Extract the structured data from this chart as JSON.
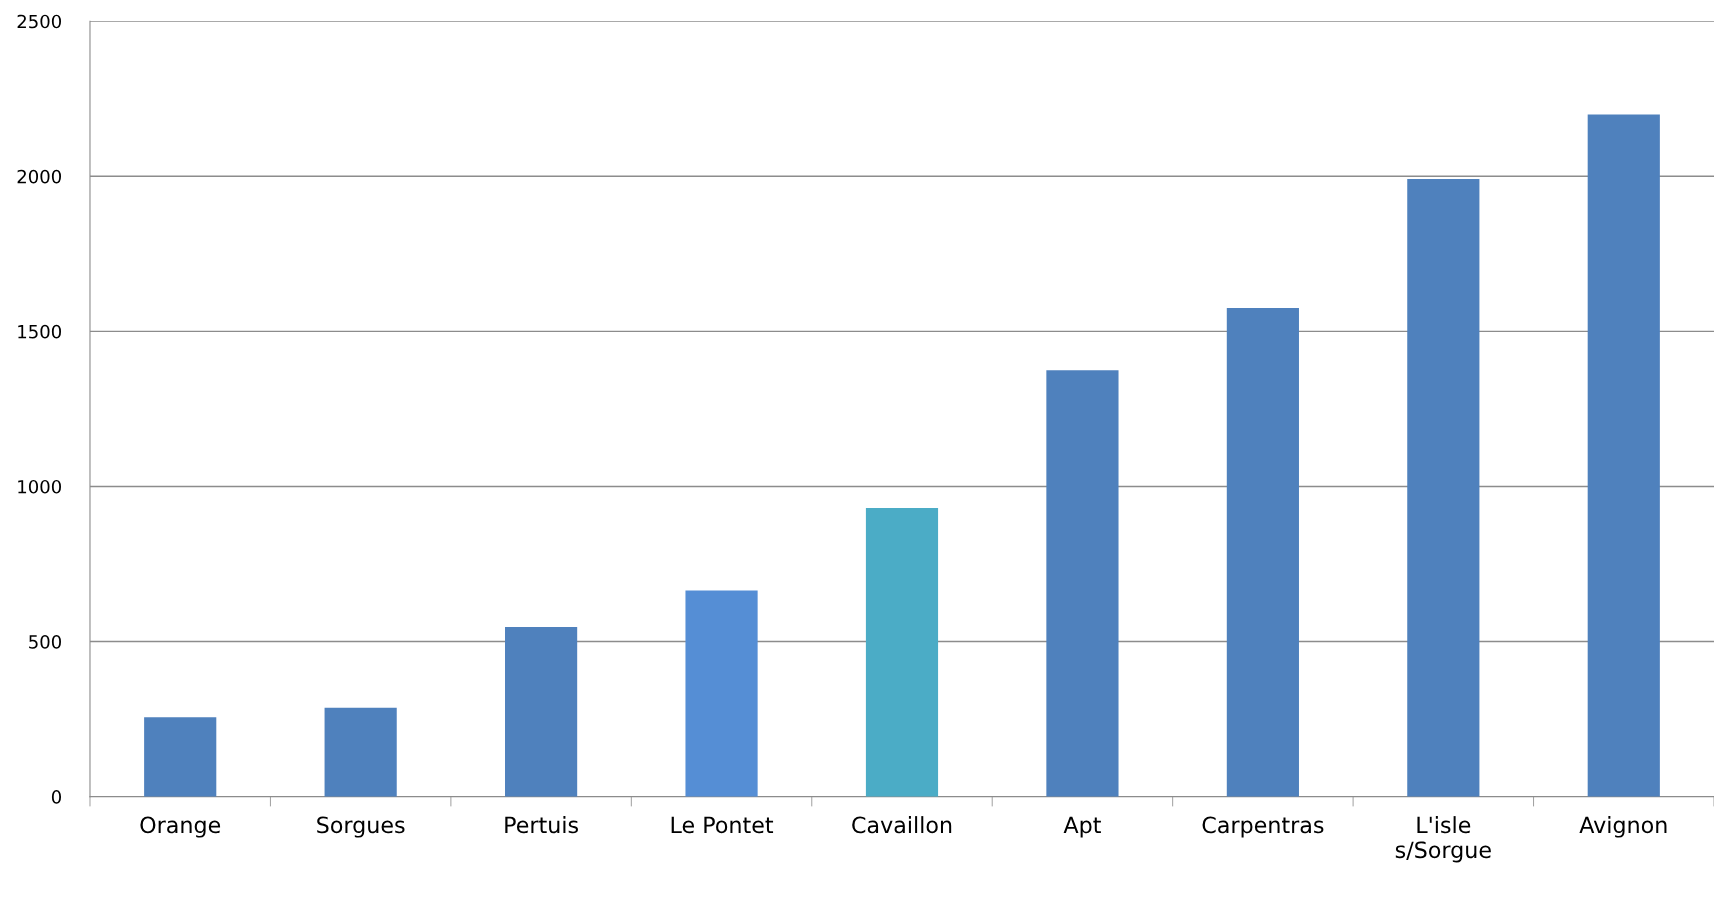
{
  "chart_data": {
    "type": "bar",
    "categories": [
      "Orange",
      "Sorgues",
      "Pertuis",
      "Le Pontet",
      "Cavaillon",
      "Apt",
      "Carpentras",
      "L'isle s/Sorgue",
      "Avignon"
    ],
    "values": [
      256,
      287,
      547,
      665,
      931,
      1375,
      1575,
      1991,
      2199
    ],
    "colors": [
      "#4f81bd",
      "#4f81bd",
      "#4f81bd",
      "#558ed5",
      "#4bacc6",
      "#4f81bd",
      "#4f81bd",
      "#4f81bd",
      "#4f81bd"
    ],
    "ylim": [
      0,
      2500
    ],
    "yticks": [
      0,
      500,
      1000,
      1500,
      2000,
      2500
    ],
    "grid": "y",
    "legend": false
  }
}
